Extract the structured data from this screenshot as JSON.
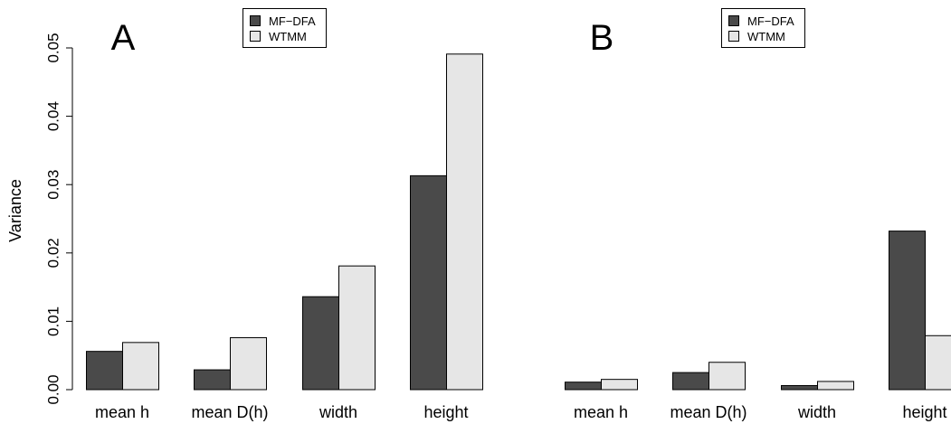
{
  "figure": {
    "ylabel": "Variance"
  },
  "chart_data": [
    {
      "type": "bar",
      "panel_label": "A",
      "title": "",
      "xlabel": "",
      "ylabel": "Variance",
      "categories": [
        "mean h",
        "mean D(h)",
        "width",
        "height"
      ],
      "series": [
        {
          "name": "MF−DFA",
          "color": "#4a4a4a",
          "values": [
            0.0056,
            0.0029,
            0.0136,
            0.0313
          ]
        },
        {
          "name": "WTMM",
          "color": "#e6e6e6",
          "values": [
            0.0069,
            0.0076,
            0.0181,
            0.0491
          ]
        }
      ],
      "ylim": [
        0,
        0.05
      ],
      "yticks": [
        "0.00",
        "0.01",
        "0.02",
        "0.03",
        "0.04",
        "0.05"
      ],
      "grid": false,
      "legend_position": "top-center"
    },
    {
      "type": "bar",
      "panel_label": "B",
      "title": "",
      "xlabel": "",
      "ylabel": "",
      "categories": [
        "mean h",
        "mean D(h)",
        "width",
        "height"
      ],
      "series": [
        {
          "name": "MF−DFA",
          "color": "#4a4a4a",
          "values": [
            0.0011,
            0.0025,
            0.0006,
            0.0232
          ]
        },
        {
          "name": "WTMM",
          "color": "#e6e6e6",
          "values": [
            0.0015,
            0.004,
            0.0012,
            0.0079
          ]
        }
      ],
      "ylim": [
        0,
        0.05
      ],
      "grid": false,
      "legend_position": "top-center"
    }
  ]
}
